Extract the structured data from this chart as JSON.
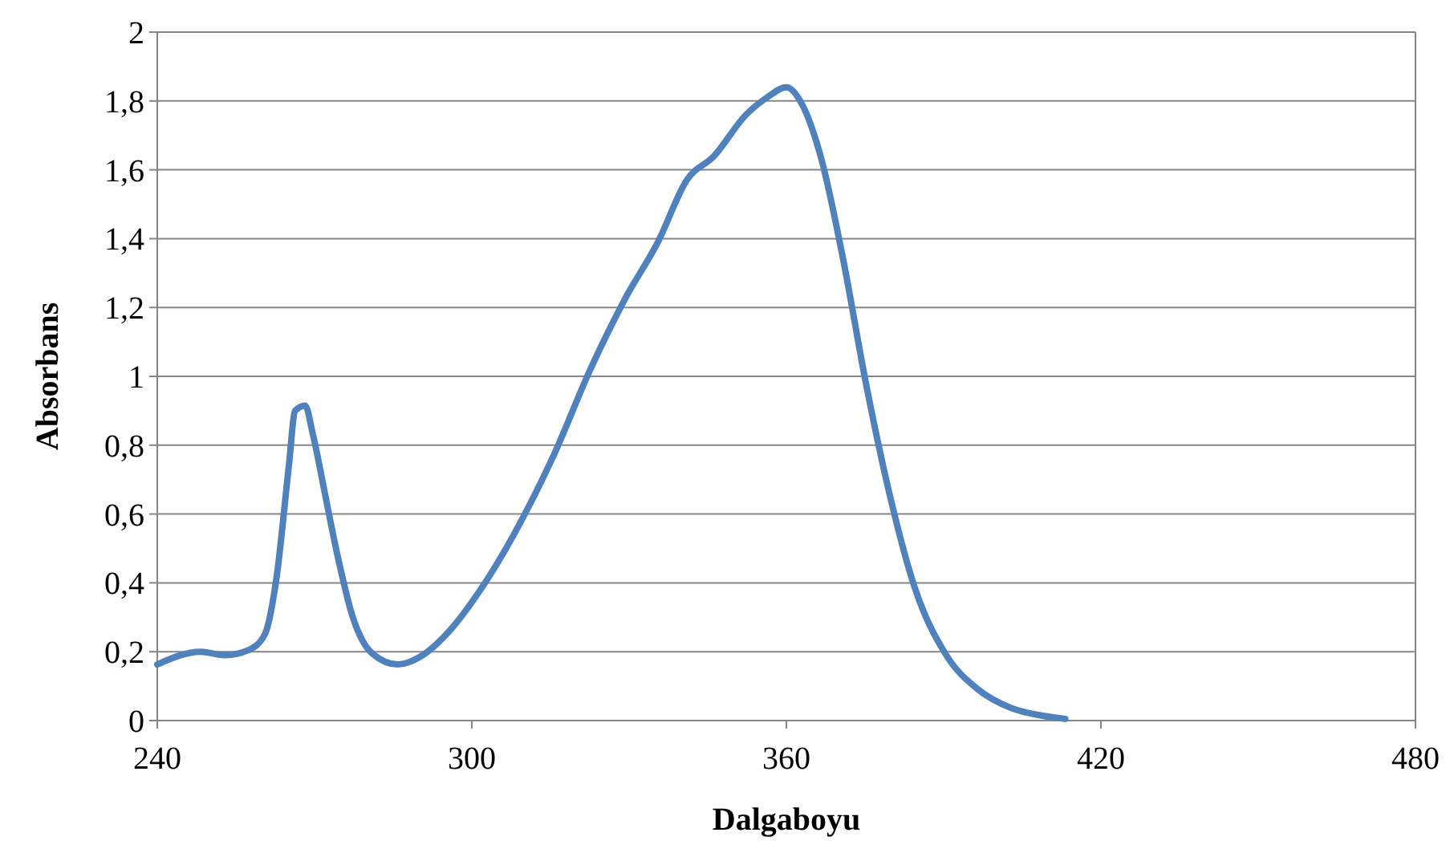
{
  "chart_data": {
    "type": "line",
    "xlabel": "Dalgaboyu",
    "ylabel": "Absorbans",
    "xlim": [
      240,
      480
    ],
    "xticks": [
      240,
      300,
      360,
      420,
      480
    ],
    "ylim": [
      0,
      2
    ],
    "yticks": [
      0,
      {
        "value": 0.2,
        "label": "0,2"
      },
      {
        "value": 0.4,
        "label": "0,4"
      },
      {
        "value": 0.6,
        "label": "0,6"
      },
      {
        "value": 0.8,
        "label": "0,8"
      },
      1,
      {
        "value": 1.2,
        "label": "1,2"
      },
      {
        "value": 1.4,
        "label": "1,4"
      },
      {
        "value": 1.6,
        "label": "1,6"
      },
      {
        "value": 1.8,
        "label": "1,8"
      },
      2
    ],
    "grid": "y",
    "marker": "none",
    "line_style": "solid",
    "series": [
      {
        "color": "#4f81bd",
        "x": [
          240,
          248.3,
          252.9,
          257.4,
          260.5,
          262.7,
          265.1,
          266.3,
          268.2,
          269.7,
          272.1,
          274.3,
          277.3,
          281,
          285.9,
          290.2,
          295.7,
          301.2,
          308,
          315.6,
          322.6,
          329.4,
          335.5,
          341,
          346.2,
          352.3,
          356.3,
          360,
          363,
          366.7,
          370.7,
          375.3,
          379.8,
          384.4,
          390.5,
          396.6,
          402.8,
          408.9,
          413.2
        ],
        "values": [
          0.163,
          0.2,
          0.19,
          0.205,
          0.25,
          0.41,
          0.74,
          0.9,
          0.915,
          0.83,
          0.65,
          0.485,
          0.3,
          0.195,
          0.163,
          0.186,
          0.26,
          0.37,
          0.54,
          0.77,
          1.02,
          1.23,
          1.39,
          1.57,
          1.64,
          1.76,
          1.81,
          1.84,
          1.79,
          1.63,
          1.35,
          0.97,
          0.65,
          0.39,
          0.19,
          0.09,
          0.037,
          0.014,
          0.005
        ]
      }
    ]
  }
}
